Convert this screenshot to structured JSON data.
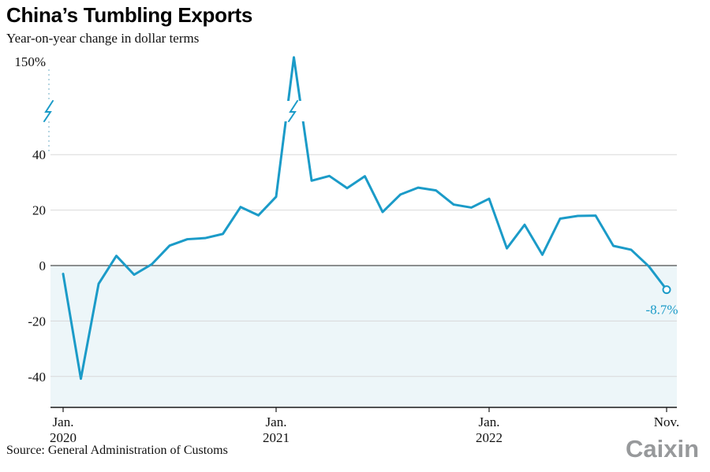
{
  "header": {
    "title": "China’s Tumbling Exports",
    "subtitle": "Year-on-year change in dollar terms"
  },
  "footer": {
    "source": "Source: General Administration of Customs",
    "logo": "Caixin"
  },
  "chart_data": {
    "type": "line",
    "title": "China’s Tumbling Exports",
    "subtitle": "Year-on-year change in dollar terms",
    "series_name": "Year-on-year change in exports (dollar terms, %)",
    "unit": "%",
    "x": [
      "Jan. 2020",
      "Feb. 2020",
      "Mar. 2020",
      "Apr. 2020",
      "May 2020",
      "Jun. 2020",
      "Jul. 2020",
      "Aug. 2020",
      "Sep. 2020",
      "Oct. 2020",
      "Nov. 2020",
      "Dec. 2020",
      "Jan. 2021",
      "Feb. 2021",
      "Mar. 2021",
      "Apr. 2021",
      "May 2021",
      "Jun. 2021",
      "Jul. 2021",
      "Aug. 2021",
      "Sep. 2021",
      "Oct. 2021",
      "Nov. 2021",
      "Dec. 2021",
      "Jan. 2022",
      "Feb. 2022",
      "Mar. 2022",
      "Apr. 2022",
      "May 2022",
      "Jun. 2022",
      "Jul. 2022",
      "Aug. 2022",
      "Sep. 2022",
      "Oct. 2022",
      "Nov. 2022"
    ],
    "values": [
      -3.0,
      -40.8,
      -6.6,
      3.5,
      -3.3,
      0.5,
      7.2,
      9.5,
      9.9,
      11.4,
      21.1,
      18.1,
      24.8,
      154.9,
      30.6,
      32.3,
      27.9,
      32.2,
      19.3,
      25.6,
      28.1,
      27.1,
      22.0,
      20.9,
      24.1,
      6.2,
      14.7,
      3.9,
      16.9,
      17.9,
      18.0,
      7.1,
      5.7,
      -0.3,
      -8.7
    ],
    "y_ticks": [
      {
        "label": "150%",
        "value": 150
      },
      {
        "label": "40",
        "value": 40
      },
      {
        "label": "20",
        "value": 20
      },
      {
        "label": "0",
        "value": 0
      },
      {
        "label": "-20",
        "value": -20
      },
      {
        "label": "-40",
        "value": -40
      }
    ],
    "x_ticks": [
      {
        "label_top": "Jan.",
        "label_bottom": "2020",
        "index": 0
      },
      {
        "label_top": "Jan.",
        "label_bottom": "2021",
        "index": 12
      },
      {
        "label_top": "Jan.",
        "label_bottom": "2022",
        "index": 24
      },
      {
        "label_top": "Nov.",
        "label_bottom": "",
        "index": 34
      }
    ],
    "axis_break": {
      "between": [
        40,
        150
      ],
      "symbol": "lightning-bolt"
    },
    "annotation": {
      "text": "-8.7%",
      "index": 34,
      "value": -8.7,
      "marker": "open-circle"
    },
    "line_color": "#1b9bc8",
    "negative_fill_color": "#edf6f9",
    "grid_color": "#d9d9d9",
    "axis_color": "#1a1a1a",
    "zero_line_color": "#4d4d4d",
    "break_dash_color": "#9fc8d8",
    "grid": true,
    "ylim_visible": [
      -51,
      155
    ]
  }
}
